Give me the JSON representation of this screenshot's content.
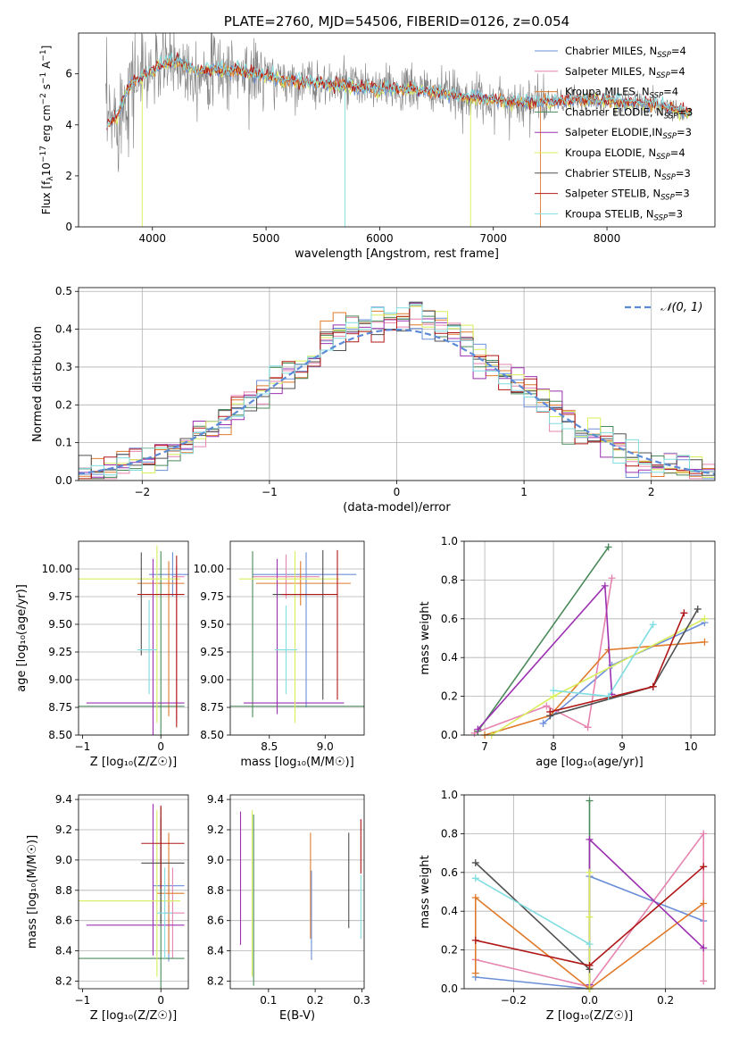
{
  "colors": {
    "chabrier_miles": "#6a8fd8",
    "salpeter_miles": "#e684b0",
    "kroupa_miles": "#e07a2a",
    "chabrier_elodie": "#4a8a5a",
    "salpeter_elodie": "#9b30b0",
    "kroupa_elodie": "#d8ee5a",
    "chabrier_stelib": "#505050",
    "salpeter_stelib": "#b01818",
    "kroupa_stelib": "#80dde0",
    "data": "#808080",
    "normal": "#5b8ad6"
  },
  "chart_data": [
    {
      "id": "spectrum",
      "type": "line",
      "title": "PLATE=2760, MJD=54506, FIBERID=0126, z=0.054",
      "xlabel": "wavelength [Angstrom, rest frame]",
      "ylabel_text": "Flux [f",
      "ylabel_sub": "λ",
      "ylabel_rest": "10",
      "ylabel_exp": "−17",
      "ylabel_units": " erg cm",
      "xlim": [
        3350,
        8950
      ],
      "ylim": [
        0,
        7.6
      ],
      "xticks": [
        "4000",
        "5000",
        "6000",
        "7000",
        "8000"
      ],
      "xtick_values": [
        4000,
        5000,
        6000,
        7000,
        8000
      ],
      "yticks": [
        "0",
        "2",
        "4",
        "6"
      ],
      "ytick_values": [
        0,
        2,
        4,
        6
      ],
      "legend_position": "top-right",
      "legend": [
        {
          "label": "Chabrier MILES, N",
          "sub": "SSP",
          "tail": "=4",
          "key": "chabrier_miles"
        },
        {
          "label": "Salpeter MILES, N",
          "sub": "SSP",
          "tail": "=4",
          "key": "salpeter_miles"
        },
        {
          "label": "Kroupa MILES, N",
          "sub": "SSP",
          "tail": "=4",
          "key": "kroupa_miles"
        },
        {
          "label": "Chabrier ELODIE, N",
          "sub": "SSP",
          "tail": "=3",
          "key": "chabrier_elodie"
        },
        {
          "label": "Salpeter ELODIE,IN",
          "sub": "SSP",
          "tail": "=3",
          "key": "salpeter_elodie"
        },
        {
          "label": "Kroupa ELODIE, N",
          "sub": "SSP",
          "tail": "=4",
          "key": "kroupa_elodie"
        },
        {
          "label": "Chabrier STELIB, N",
          "sub": "SSP",
          "tail": "=3",
          "key": "chabrier_stelib"
        },
        {
          "label": "Salpeter STELIB, N",
          "sub": "SSP",
          "tail": "=3",
          "key": "salpeter_stelib"
        },
        {
          "label": "Kroupa STELIB, N",
          "sub": "SSP",
          "tail": "=3",
          "key": "kroupa_stelib"
        }
      ],
      "model_continuum": [
        [
          3600,
          4.0
        ],
        [
          3700,
          4.4
        ],
        [
          3800,
          5.6
        ],
        [
          3900,
          5.9
        ],
        [
          4000,
          6.1
        ],
        [
          4100,
          6.4
        ],
        [
          4200,
          6.5
        ],
        [
          4300,
          6.3
        ],
        [
          4400,
          6.1
        ],
        [
          4500,
          6.2
        ],
        [
          4700,
          6.1
        ],
        [
          4900,
          6.0
        ],
        [
          5100,
          5.8
        ],
        [
          5300,
          5.7
        ],
        [
          5500,
          5.6
        ],
        [
          5800,
          5.5
        ],
        [
          6000,
          5.4
        ],
        [
          6300,
          5.4
        ],
        [
          6600,
          5.2
        ],
        [
          6900,
          5.0
        ],
        [
          7200,
          4.9
        ],
        [
          7500,
          4.9
        ],
        [
          7800,
          5.0
        ],
        [
          8100,
          4.9
        ],
        [
          8400,
          4.8
        ],
        [
          8700,
          4.5
        ]
      ]
    },
    {
      "id": "residuals",
      "type": "histogram",
      "xlabel": "(data-model)/error",
      "ylabel": "Normed distribution",
      "xlim": [
        -2.5,
        2.5
      ],
      "ylim": [
        0,
        0.51
      ],
      "grid": true,
      "xticks": [
        "−2",
        "−1",
        "0",
        "1",
        "2"
      ],
      "xtick_values": [
        -2,
        -1,
        0,
        1,
        2
      ],
      "yticks": [
        "0.0",
        "0.1",
        "0.2",
        "0.3",
        "0.4",
        "0.5"
      ],
      "ytick_values": [
        0,
        0.1,
        0.2,
        0.3,
        0.4,
        0.5
      ],
      "legend_label": "𝒩(0, 1)",
      "legend_position": "top-right",
      "bin_width": 0.1
    },
    {
      "id": "age_vs_Z",
      "type": "errorbar",
      "xlabel": "Z [log₁₀(Z/Z☉)]",
      "ylabel": "age  [log₁₀(age/yr)]",
      "xlim": [
        -1.05,
        0.35
      ],
      "ylim": [
        8.5,
        10.25
      ],
      "xticks": [
        "−1",
        "0"
      ],
      "xtick_values": [
        -1,
        0
      ],
      "yticks": [
        "8.50",
        "8.75",
        "9.00",
        "9.25",
        "9.50",
        "9.75",
        "10.00"
      ],
      "ytick_values": [
        8.5,
        8.75,
        9.0,
        9.25,
        9.5,
        9.75,
        10.0
      ],
      "points": [
        {
          "key": "chabrier_miles",
          "x": 0.15,
          "xerr": [
            0.3,
            0.3
          ],
          "y": 9.95,
          "yerr": [
            0.2,
            0.2
          ]
        },
        {
          "key": "salpeter_miles",
          "x": 0.2,
          "xerr": [
            0.05,
            0.1
          ],
          "y": 9.93,
          "yerr": [
            1.3,
            0.1
          ]
        },
        {
          "key": "kroupa_miles",
          "x": 0.1,
          "xerr": [
            0.4,
            0.2
          ],
          "y": 9.87,
          "yerr": [
            1.2,
            0.2
          ]
        },
        {
          "key": "chabrier_elodie",
          "x": 0.0,
          "xerr": [
            1.05,
            0.3
          ],
          "y": 8.76,
          "yerr": [
            0.3,
            1.4
          ]
        },
        {
          "key": "salpeter_elodie",
          "x": -0.1,
          "xerr": [
            0.85,
            0.4
          ],
          "y": 8.79,
          "yerr": [
            0.5,
            1.3
          ]
        },
        {
          "key": "kroupa_elodie",
          "x": -0.05,
          "xerr": [
            1.0,
            0.3
          ],
          "y": 9.91,
          "yerr": [
            1.3,
            0.3
          ]
        },
        {
          "key": "chabrier_stelib",
          "x": -0.25,
          "xerr": [
            0.0,
            0.0
          ],
          "y": 9.77,
          "yerr": [
            0.55,
            0.38
          ]
        },
        {
          "key": "salpeter_stelib",
          "x": 0.2,
          "xerr": [
            0.5,
            0.1
          ],
          "y": 9.77,
          "yerr": [
            1.2,
            0.35
          ]
        },
        {
          "key": "kroupa_stelib",
          "x": -0.15,
          "xerr": [
            0.15,
            0.1
          ],
          "y": 9.27,
          "yerr": [
            0.4,
            0.45
          ]
        }
      ]
    },
    {
      "id": "age_vs_mass",
      "type": "errorbar",
      "xlabel": "mass [log₁₀(M/M☉)]",
      "xlim": [
        8.15,
        9.35
      ],
      "ylim": [
        8.5,
        10.25
      ],
      "xticks": [
        "8.5",
        "9.0"
      ],
      "xtick_values": [
        8.5,
        9.0
      ],
      "yticks": [
        "8.50",
        "8.75",
        "9.00",
        "9.25",
        "9.50",
        "9.75",
        "10.00"
      ],
      "ytick_values": [
        8.5,
        8.75,
        9.0,
        9.25,
        9.5,
        9.75,
        10.0
      ],
      "points": [
        {
          "key": "chabrier_miles",
          "x": 8.83,
          "xerr": [
            0.48,
            0.45
          ],
          "y": 9.95,
          "yerr": [
            1.2,
            0.2
          ]
        },
        {
          "key": "salpeter_miles",
          "x": 8.65,
          "xerr": [
            0.3,
            0.3
          ],
          "y": 9.93,
          "yerr": [
            0.2,
            0.2
          ]
        },
        {
          "key": "kroupa_miles",
          "x": 8.78,
          "xerr": [
            0.4,
            0.45
          ],
          "y": 9.87,
          "yerr": [
            0.2,
            0.2
          ]
        },
        {
          "key": "chabrier_elodie",
          "x": 8.35,
          "xerr": [
            0.5,
            1.0
          ],
          "y": 8.76,
          "yerr": [
            0.1,
            1.4
          ]
        },
        {
          "key": "salpeter_elodie",
          "x": 8.57,
          "xerr": [
            0.3,
            0.6
          ],
          "y": 8.79,
          "yerr": [
            0.1,
            1.3
          ]
        },
        {
          "key": "kroupa_elodie",
          "x": 8.73,
          "xerr": [
            0.5,
            0.4
          ],
          "y": 9.91,
          "yerr": [
            1.3,
            0.25
          ]
        },
        {
          "key": "chabrier_stelib",
          "x": 8.98,
          "xerr": [
            0.45,
            0.0
          ],
          "y": 9.77,
          "yerr": [
            0.95,
            0.4
          ]
        },
        {
          "key": "salpeter_stelib",
          "x": 9.11,
          "xerr": [
            0.5,
            0.0
          ],
          "y": 9.77,
          "yerr": [
            0.95,
            0.4
          ]
        },
        {
          "key": "kroupa_stelib",
          "x": 8.65,
          "xerr": [
            0.1,
            0.1
          ],
          "y": 9.27,
          "yerr": [
            0.4,
            0.4
          ]
        }
      ]
    },
    {
      "id": "weight_vs_age",
      "type": "line",
      "xlabel": "age  [log₁₀(age/yr)]",
      "ylabel": "mass weight",
      "xlim": [
        6.7,
        10.35
      ],
      "ylim": [
        0,
        1.0
      ],
      "grid": true,
      "xticks": [
        "7",
        "8",
        "9",
        "10"
      ],
      "xtick_values": [
        7,
        8,
        9,
        10
      ],
      "yticks": [
        "0.0",
        "0.2",
        "0.4",
        "0.6",
        "0.8",
        "1.0"
      ],
      "ytick_values": [
        0,
        0.2,
        0.4,
        0.6,
        0.8,
        1.0
      ],
      "series": [
        {
          "key": "chabrier_miles",
          "x": [
            7.85,
            8.85,
            10.2
          ],
          "y": [
            0.06,
            0.36,
            0.58
          ]
        },
        {
          "key": "salpeter_miles",
          "x": [
            6.85,
            7.9,
            8.5,
            8.85
          ],
          "y": [
            0.01,
            0.15,
            0.04,
            0.81
          ]
        },
        {
          "key": "kroupa_miles",
          "x": [
            7.0,
            7.95,
            8.8,
            10.2
          ],
          "y": [
            0.0,
            0.1,
            0.44,
            0.48
          ]
        },
        {
          "key": "chabrier_elodie",
          "x": [
            6.9,
            8.8
          ],
          "y": [
            0.02,
            0.97
          ]
        },
        {
          "key": "salpeter_elodie",
          "x": [
            6.9,
            8.75,
            8.85
          ],
          "y": [
            0.03,
            0.77,
            0.21
          ]
        },
        {
          "key": "kroupa_elodie",
          "x": [
            7.1,
            8.0,
            10.2
          ],
          "y": [
            0.0,
            0.2,
            0.6
          ]
        },
        {
          "key": "chabrier_stelib",
          "x": [
            7.95,
            9.45,
            10.1
          ],
          "y": [
            0.1,
            0.25,
            0.65
          ]
        },
        {
          "key": "salpeter_stelib",
          "x": [
            7.95,
            9.45,
            9.9
          ],
          "y": [
            0.12,
            0.25,
            0.63
          ]
        },
        {
          "key": "kroupa_stelib",
          "x": [
            8.0,
            8.8,
            9.45
          ],
          "y": [
            0.23,
            0.2,
            0.57
          ]
        }
      ]
    },
    {
      "id": "mass_vs_Z",
      "type": "errorbar",
      "xlabel": "Z [log₁₀(Z/Z☉)]",
      "ylabel": "mass [log₁₀(M/M☉)]",
      "xlim": [
        -1.05,
        0.35
      ],
      "ylim": [
        8.15,
        9.43
      ],
      "xticks": [
        "−1",
        "0"
      ],
      "xtick_values": [
        -1,
        0
      ],
      "yticks": [
        "8.2",
        "8.4",
        "8.6",
        "8.8",
        "9.0",
        "9.2",
        "9.4"
      ],
      "ytick_values": [
        8.2,
        8.4,
        8.6,
        8.8,
        9.0,
        9.2,
        9.4
      ],
      "points": [
        {
          "key": "chabrier_miles",
          "x": 0.1,
          "xerr": [
            0.2,
            0.2
          ],
          "y": 8.83,
          "yerr": [
            0.5,
            0.1
          ]
        },
        {
          "key": "salpeter_miles",
          "x": 0.15,
          "xerr": [
            0.1,
            0.15
          ],
          "y": 8.65,
          "yerr": [
            0.3,
            0.3
          ]
        },
        {
          "key": "kroupa_miles",
          "x": 0.1,
          "xerr": [
            0.15,
            0.2
          ],
          "y": 8.78,
          "yerr": [
            0.4,
            0.4
          ]
        },
        {
          "key": "chabrier_elodie",
          "x": 0.0,
          "xerr": [
            1.05,
            0.3
          ],
          "y": 8.35,
          "yerr": [
            0.2,
            1.0
          ]
        },
        {
          "key": "salpeter_elodie",
          "x": -0.1,
          "xerr": [
            0.85,
            0.4
          ],
          "y": 8.57,
          "yerr": [
            0.2,
            0.8
          ]
        },
        {
          "key": "kroupa_elodie",
          "x": -0.05,
          "xerr": [
            1.0,
            0.3
          ],
          "y": 8.73,
          "yerr": [
            0.5,
            0.6
          ]
        },
        {
          "key": "chabrier_stelib",
          "x": 0.0,
          "xerr": [
            0.25,
            0.3
          ],
          "y": 8.98,
          "yerr": [
            0.4,
            0.3
          ]
        },
        {
          "key": "salpeter_stelib",
          "x": 0.0,
          "xerr": [
            0.25,
            0.3
          ],
          "y": 9.11,
          "yerr": [
            0.3,
            0.25
          ]
        },
        {
          "key": "kroupa_stelib",
          "x": 0.05,
          "xerr": [
            0.1,
            0.1
          ],
          "y": 8.65,
          "yerr": [
            0.3,
            0.3
          ]
        }
      ]
    },
    {
      "id": "mass_vs_ebv",
      "type": "errorbar",
      "xlabel": "E(B-V)",
      "xlim": [
        0.018,
        0.305
      ],
      "ylim": [
        8.15,
        9.43
      ],
      "xticks": [
        "0.1",
        "0.2",
        "0.3"
      ],
      "xtick_values": [
        0.1,
        0.2,
        0.3
      ],
      "yticks": [
        "8.2",
        "8.4",
        "8.6",
        "8.8",
        "9.0",
        "9.2",
        "9.4"
      ],
      "ytick_values": [
        8.2,
        8.4,
        8.6,
        8.8,
        9.0,
        9.2,
        9.4
      ],
      "points": [
        {
          "key": "salpeter_elodie",
          "x": 0.04,
          "y": 8.57,
          "yerr": [
            0.13,
            0.75
          ]
        },
        {
          "key": "kroupa_elodie",
          "x": 0.065,
          "y": 8.73,
          "yerr": [
            0.5,
            0.6
          ]
        },
        {
          "key": "chabrier_elodie",
          "x": 0.068,
          "y": 8.35,
          "yerr": [
            0.18,
            0.95
          ]
        },
        {
          "key": "kroupa_miles",
          "x": 0.19,
          "y": 8.78,
          "yerr": [
            0.3,
            0.4
          ]
        },
        {
          "key": "chabrier_miles",
          "x": 0.192,
          "y": 8.83,
          "yerr": [
            0.49,
            0.1
          ]
        },
        {
          "key": "chabrier_stelib",
          "x": 0.272,
          "y": 8.98,
          "yerr": [
            0.43,
            0.2
          ]
        },
        {
          "key": "salpeter_stelib",
          "x": 0.298,
          "y": 9.11,
          "yerr": [
            0.2,
            0.16
          ]
        },
        {
          "key": "kroupa_stelib",
          "x": 0.298,
          "y": 8.65,
          "yerr": [
            0.17,
            0.25
          ]
        }
      ]
    },
    {
      "id": "weight_vs_Z",
      "type": "line",
      "xlabel": "Z [log₁₀(Z/Z☉)]",
      "ylabel": "mass weight",
      "xlim": [
        -0.33,
        0.33
      ],
      "ylim": [
        0,
        1.0
      ],
      "grid": true,
      "xticks": [
        "−0.2",
        "0.0",
        "0.2"
      ],
      "xtick_values": [
        -0.2,
        0.0,
        0.2
      ],
      "yticks": [
        "0.0",
        "0.2",
        "0.4",
        "0.6",
        "0.8",
        "1.0"
      ],
      "ytick_values": [
        0,
        0.2,
        0.4,
        0.6,
        0.8,
        1.0
      ],
      "series": [
        {
          "key": "chabrier_miles",
          "x": [
            -0.3,
            0.0,
            0.0,
            0.3
          ],
          "y": [
            0.06,
            0.0,
            0.58,
            0.35
          ]
        },
        {
          "key": "salpeter_miles",
          "x": [
            -0.3,
            0.0,
            0.3,
            0.3
          ],
          "y": [
            0.15,
            0.01,
            0.8,
            0.04
          ]
        },
        {
          "key": "kroupa_miles",
          "x": [
            -0.3,
            -0.3,
            0.0,
            0.3
          ],
          "y": [
            0.08,
            0.47,
            0.0,
            0.44
          ]
        },
        {
          "key": "chabrier_elodie",
          "x": [
            0.0,
            0.0
          ],
          "y": [
            0.0,
            0.97
          ]
        },
        {
          "key": "salpeter_elodie",
          "x": [
            0.0,
            0.0,
            0.3
          ],
          "y": [
            0.02,
            0.77,
            0.21
          ]
        },
        {
          "key": "kroupa_elodie",
          "x": [
            0.0,
            0.0,
            0.0
          ],
          "y": [
            0.0,
            0.6,
            0.37
          ]
        },
        {
          "key": "chabrier_stelib",
          "x": [
            -0.3,
            0.0
          ],
          "y": [
            0.65,
            0.1
          ]
        },
        {
          "key": "salpeter_stelib",
          "x": [
            -0.3,
            0.0,
            0.3
          ],
          "y": [
            0.25,
            0.12,
            0.63
          ]
        },
        {
          "key": "kroupa_stelib",
          "x": [
            -0.3,
            0.0
          ],
          "y": [
            0.57,
            0.23
          ]
        }
      ]
    }
  ]
}
